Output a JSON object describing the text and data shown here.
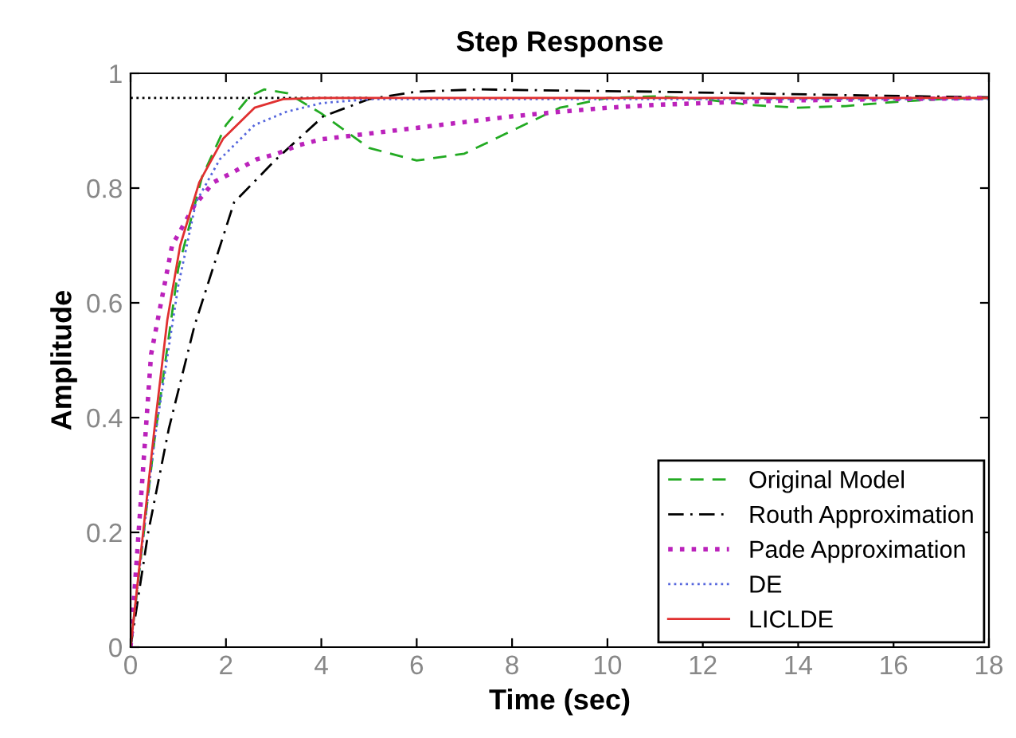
{
  "chart_data": {
    "type": "line",
    "title": "Step Response",
    "xlabel": "Time (sec)",
    "ylabel": "Amplitude",
    "xlim": [
      0,
      18
    ],
    "xticks": [
      0,
      2,
      4,
      6,
      8,
      10,
      12,
      14,
      16,
      18
    ],
    "ylim": [
      0,
      1
    ],
    "yticks": [
      0,
      0.2,
      0.4,
      0.6,
      0.8,
      1
    ],
    "grid": false,
    "legend": "bottom right",
    "series": [
      {
        "color": "#000000",
        "line_style": "dotted",
        "x": [
          0,
          5
        ],
        "values": [
          0.957,
          0.957
        ]
      },
      {
        "name": "Original Model",
        "color": "#22aa22",
        "line_style": "dashed",
        "x": [
          0,
          0.5,
          1,
          1.5,
          2,
          2.5,
          2.8,
          3.3,
          4,
          5,
          6,
          7,
          8,
          9,
          10,
          11,
          12,
          13,
          14,
          15,
          16,
          17,
          18
        ],
        "values": [
          0,
          0.36,
          0.66,
          0.82,
          0.91,
          0.96,
          0.972,
          0.965,
          0.93,
          0.87,
          0.848,
          0.86,
          0.9,
          0.94,
          0.957,
          0.96,
          0.955,
          0.945,
          0.94,
          0.943,
          0.95,
          0.955,
          0.957
        ]
      },
      {
        "name": "Routh Approximation",
        "color": "#000000",
        "line_style": "dashdot",
        "x": [
          0,
          0.37,
          0.8,
          1.34,
          2.17,
          3.05,
          4.04,
          5,
          6,
          7.3,
          9,
          11,
          13,
          15,
          18
        ],
        "values": [
          0,
          0.2,
          0.38,
          0.56,
          0.775,
          0.85,
          0.925,
          0.955,
          0.968,
          0.972,
          0.97,
          0.968,
          0.965,
          0.962,
          0.958
        ]
      },
      {
        "name": "Pade Approximation",
        "color": "#bb22bb",
        "line_style": "dotted",
        "x": [
          0,
          0.43,
          0.87,
          1.34,
          1.74,
          2.2,
          2.64,
          3.07,
          3.54,
          4,
          5,
          6,
          7,
          8,
          9,
          10,
          11,
          12,
          13,
          14,
          16,
          18
        ],
        "values": [
          0,
          0.51,
          0.7,
          0.77,
          0.81,
          0.83,
          0.85,
          0.86,
          0.875,
          0.885,
          0.895,
          0.905,
          0.915,
          0.925,
          0.933,
          0.94,
          0.945,
          0.948,
          0.951,
          0.953,
          0.955,
          0.957
        ]
      },
      {
        "name": "DE",
        "color": "#5566dd",
        "line_style": "dotted",
        "x": [
          0,
          0.5,
          1,
          1.37,
          1.87,
          2.6,
          3.27,
          4,
          5,
          18
        ],
        "values": [
          0,
          0.36,
          0.63,
          0.775,
          0.85,
          0.91,
          0.933,
          0.948,
          0.955,
          0.955
        ]
      },
      {
        "name": "LICLDE",
        "color": "#e03030",
        "line_style": "solid",
        "x": [
          0,
          0.25,
          0.5,
          0.77,
          1.04,
          1.44,
          1.94,
          2.6,
          3.2,
          4,
          18
        ],
        "values": [
          0,
          0.19,
          0.38,
          0.57,
          0.7,
          0.81,
          0.886,
          0.94,
          0.955,
          0.957,
          0.957
        ]
      }
    ]
  }
}
